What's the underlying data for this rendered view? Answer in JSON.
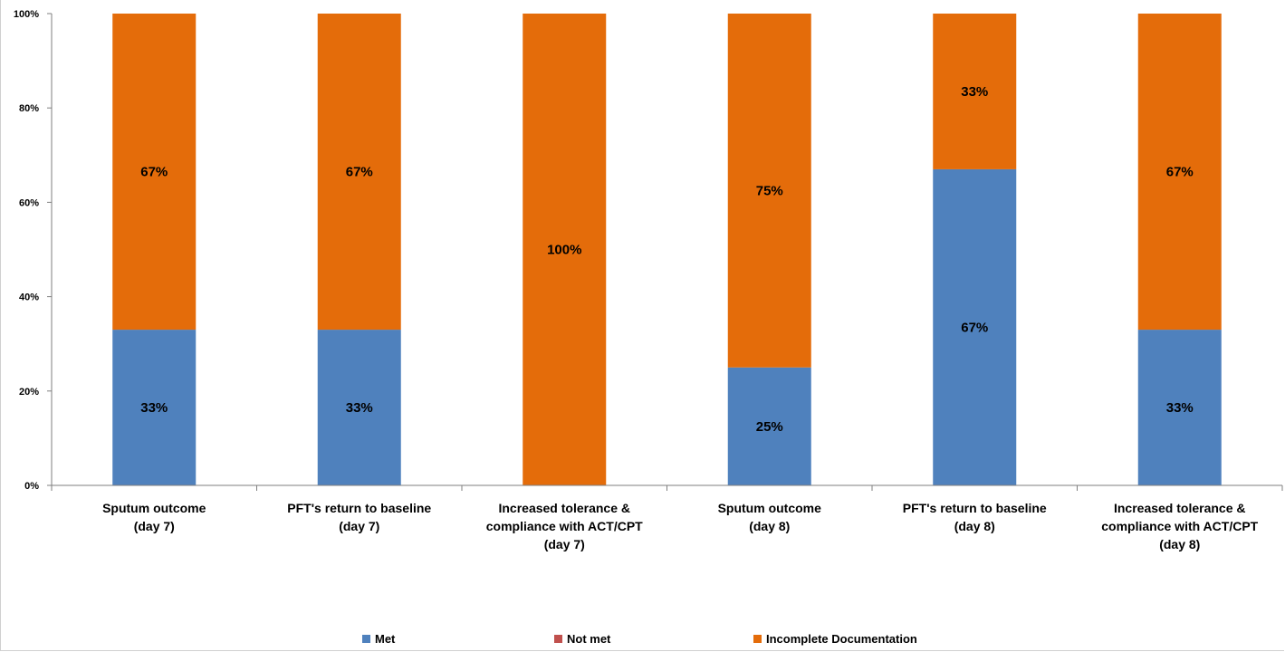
{
  "chart_data": {
    "type": "bar",
    "stacked": true,
    "categories": [
      [
        "Sputum outcome",
        "(day 7)"
      ],
      [
        "PFT's return to baseline",
        "(day 7)"
      ],
      [
        "Increased tolerance &",
        "compliance with ACT/CPT",
        "(day 7)"
      ],
      [
        "Sputum outcome",
        "(day 8)"
      ],
      [
        "PFT's return to baseline",
        "(day 8)"
      ],
      [
        "Increased tolerance &",
        "compliance with ACT/CPT",
        "(day 8)"
      ]
    ],
    "series": [
      {
        "name": "Met",
        "color": "#4f81bd",
        "values": [
          33,
          33,
          0,
          25,
          67,
          33
        ],
        "labels": [
          "33%",
          "33%",
          "",
          "25%",
          "67%",
          "33%"
        ]
      },
      {
        "name": "Not met",
        "color": "#c0504d",
        "values": [
          0,
          0,
          0,
          0,
          0,
          0
        ],
        "labels": [
          "",
          "",
          "",
          "",
          "",
          ""
        ]
      },
      {
        "name": "Incomplete Documentation",
        "color": "#e46c0a",
        "values": [
          67,
          67,
          100,
          75,
          33,
          67
        ],
        "labels": [
          "67%",
          "67%",
          "100%",
          "75%",
          "33%",
          "67%"
        ]
      }
    ],
    "yticks": [
      "0%",
      "20%",
      "40%",
      "60%",
      "80%",
      "100%"
    ],
    "ylim": [
      0,
      100
    ],
    "title": "",
    "xlabel": "",
    "ylabel": "",
    "grid": false,
    "legend_position": "bottom"
  }
}
